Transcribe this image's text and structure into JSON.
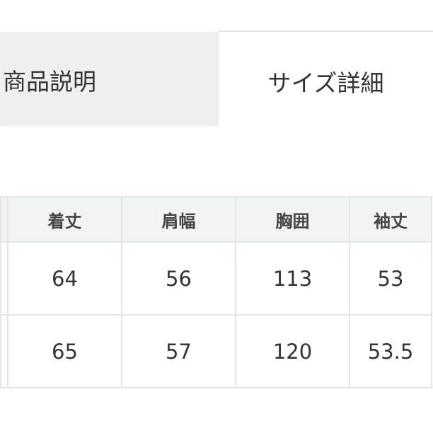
{
  "tabs": [
    {
      "label": "商品説明",
      "active": false
    },
    {
      "label": "サイズ詳細",
      "active": true
    }
  ],
  "size_table": {
    "headers": [
      "",
      "着丈",
      "肩幅",
      "胸囲",
      "袖丈"
    ],
    "rows": [
      {
        "cells": [
          "",
          "64",
          "56",
          "113",
          "53"
        ]
      },
      {
        "cells": [
          "",
          "65",
          "57",
          "120",
          "53.5"
        ]
      }
    ]
  }
}
